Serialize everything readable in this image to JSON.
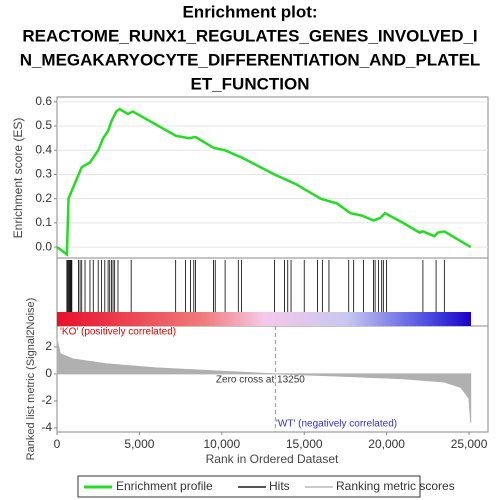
{
  "title_lines": [
    "Enrichment plot:",
    "REACTOME_RUNX1_REGULATES_GENES_INVOLVED_I",
    "N_MEGAKARYOCYTE_DIFFERENTIATION_AND_PLATEL",
    "ET_FUNCTION"
  ],
  "legend": [
    "Enrichment profile",
    "Hits",
    "Ranking metric scores"
  ],
  "chart_data": [
    {
      "type": "line",
      "y_label": "Enrichment score (ES)",
      "color": "#22dd22",
      "grid": true,
      "xlim": [
        0,
        26150
      ],
      "ylim": [
        -0.045,
        0.62
      ],
      "yticks": [
        {
          "value": 0,
          "label": "0.0"
        },
        0.1,
        0.2,
        0.3,
        0.4,
        0.5,
        0.6
      ],
      "x": [
        0,
        600,
        700,
        1000,
        1500,
        2000,
        2500,
        2800,
        3100,
        3300,
        3600,
        3800,
        4300,
        4600,
        7200,
        8000,
        8400,
        9500,
        10200,
        11200,
        13200,
        14500,
        16000,
        17000,
        17800,
        18500,
        19200,
        19600,
        19900,
        21000,
        22000,
        22200,
        22900,
        23100,
        23500,
        25100
      ],
      "values": [
        0,
        -0.03,
        0.2,
        0.25,
        0.33,
        0.35,
        0.4,
        0.45,
        0.48,
        0.52,
        0.56,
        0.57,
        0.55,
        0.56,
        0.46,
        0.45,
        0.455,
        0.41,
        0.4,
        0.37,
        0.3,
        0.26,
        0.2,
        0.18,
        0.14,
        0.13,
        0.11,
        0.12,
        0.14,
        0.1,
        0.06,
        0.065,
        0.045,
        0.06,
        0.065,
        0
      ]
    },
    {
      "type": "rug",
      "color": "#000000",
      "xlim": [
        0,
        26150
      ],
      "x": [
        600,
        650,
        700,
        750,
        800,
        850,
        900,
        1300,
        1400,
        1500,
        1700,
        2000,
        2200,
        2500,
        2700,
        2900,
        3100,
        3200,
        3300,
        3400,
        3500,
        3700,
        4500,
        7200,
        7800,
        8100,
        8300,
        8400,
        9500,
        9600,
        10200,
        11000,
        11200,
        13200,
        13800,
        14000,
        14200,
        15000,
        15800,
        16100,
        16500,
        17700,
        18000,
        18600,
        19200,
        19300,
        19500,
        19700,
        19800,
        20000,
        22200,
        23000,
        23500
      ]
    },
    {
      "type": "area",
      "y_label": "Ranked list metric (Signal2Noise)",
      "x_label": "Rank in Ordered Dataset",
      "color": "#b0b0b0",
      "xlim": [
        0,
        26150
      ],
      "ylim": [
        -4.3,
        3.55
      ],
      "xticks": [
        0,
        {
          "value": 5000,
          "label": "5,000"
        },
        {
          "value": 10000,
          "label": "10,000"
        },
        {
          "value": 15000,
          "label": "15,000"
        },
        {
          "value": 20000,
          "label": "20,000"
        },
        {
          "value": 25000,
          "label": "25,000"
        }
      ],
      "yticks": [
        -4,
        -2,
        0,
        2
      ],
      "x": [
        0,
        200,
        1000,
        3000,
        6000,
        10000,
        13250,
        17000,
        21000,
        23500,
        24500,
        25000,
        25100
      ],
      "values": [
        2.6,
        1.5,
        1.1,
        0.75,
        0.45,
        0.2,
        0,
        -0.15,
        -0.35,
        -0.6,
        -1.0,
        -1.8,
        -3.6
      ],
      "zero_cross": {
        "value": 13250,
        "label": "Zero cross at 13250"
      },
      "pos_label": "'KO' (positively correlated)",
      "neg_label": "'WT' (negatively correlated)"
    }
  ]
}
